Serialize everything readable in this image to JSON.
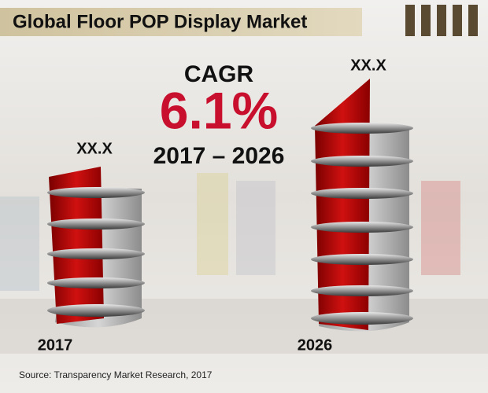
{
  "header": {
    "title": "Global Floor POP Display Market"
  },
  "cagr": {
    "label": "CAGR",
    "value": "6.1%",
    "period": "2017 – 2026"
  },
  "items": [
    {
      "year": "2017",
      "value_label": "XX.X"
    },
    {
      "year": "2026",
      "value_label": "XX.X"
    }
  ],
  "source": "Source: Transparency Market Research, 2017"
}
